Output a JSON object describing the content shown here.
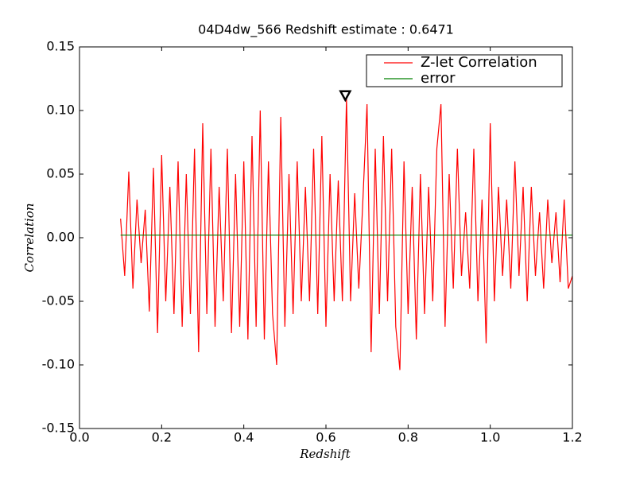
{
  "chart_data": {
    "type": "line",
    "title": "04D4dw_566 Redshift estimate : 0.6471",
    "xlabel": "Redshift",
    "ylabel": "Correlation",
    "x": [
      0.1,
      0.11,
      0.12,
      0.13,
      0.14,
      0.15,
      0.16,
      0.17,
      0.18,
      0.19,
      0.2,
      0.21,
      0.22,
      0.23,
      0.24,
      0.25,
      0.26,
      0.27,
      0.28,
      0.29,
      0.3,
      0.31,
      0.32,
      0.33,
      0.34,
      0.35,
      0.36,
      0.37,
      0.38,
      0.39,
      0.4,
      0.41,
      0.42,
      0.43,
      0.44,
      0.45,
      0.46,
      0.47,
      0.48,
      0.49,
      0.5,
      0.51,
      0.52,
      0.53,
      0.54,
      0.55,
      0.56,
      0.57,
      0.58,
      0.59,
      0.6,
      0.61,
      0.62,
      0.63,
      0.64,
      0.65,
      0.66,
      0.67,
      0.68,
      0.69,
      0.7,
      0.71,
      0.72,
      0.73,
      0.74,
      0.75,
      0.76,
      0.77,
      0.78,
      0.79,
      0.8,
      0.81,
      0.82,
      0.83,
      0.84,
      0.85,
      0.86,
      0.87,
      0.88,
      0.89,
      0.9,
      0.91,
      0.92,
      0.93,
      0.94,
      0.95,
      0.96,
      0.97,
      0.98,
      0.99,
      1.0,
      1.01,
      1.02,
      1.03,
      1.04,
      1.05,
      1.06,
      1.07,
      1.08,
      1.09,
      1.1,
      1.11,
      1.12,
      1.13,
      1.14,
      1.15,
      1.16,
      1.17,
      1.18,
      1.19,
      1.2
    ],
    "series": [
      {
        "name": "Z-let Correlation",
        "color": "#ff0000",
        "values": [
          0.015,
          -0.03,
          0.052,
          -0.04,
          0.03,
          -0.02,
          0.022,
          -0.058,
          0.055,
          -0.075,
          0.065,
          -0.05,
          0.04,
          -0.06,
          0.06,
          -0.07,
          0.05,
          -0.06,
          0.07,
          -0.09,
          0.09,
          -0.06,
          0.07,
          -0.07,
          0.04,
          -0.05,
          0.07,
          -0.075,
          0.05,
          -0.07,
          0.06,
          -0.08,
          0.08,
          -0.07,
          0.1,
          -0.08,
          0.06,
          -0.06,
          -0.1,
          0.095,
          -0.07,
          0.05,
          -0.06,
          0.06,
          -0.05,
          0.04,
          -0.05,
          0.07,
          -0.06,
          0.08,
          -0.07,
          0.05,
          -0.05,
          0.045,
          -0.05,
          0.11,
          -0.05,
          0.035,
          -0.04,
          0.03,
          0.105,
          -0.09,
          0.07,
          -0.06,
          0.08,
          -0.05,
          0.07,
          -0.07,
          -0.104,
          0.06,
          -0.06,
          0.04,
          -0.08,
          0.05,
          -0.06,
          0.04,
          -0.05,
          0.07,
          0.105,
          -0.07,
          0.05,
          -0.04,
          0.07,
          -0.03,
          0.02,
          -0.04,
          0.07,
          -0.05,
          0.03,
          -0.083,
          0.09,
          -0.05,
          0.04,
          -0.03,
          0.03,
          -0.04,
          0.06,
          -0.03,
          0.04,
          -0.05,
          0.04,
          -0.03,
          0.02,
          -0.04,
          0.03,
          -0.02,
          0.02,
          -0.035,
          0.03,
          -0.04,
          -0.03
        ]
      },
      {
        "name": "error",
        "color": "#008000",
        "x": [
          0.1,
          1.2
        ],
        "values": [
          0.002,
          0.002
        ]
      }
    ],
    "marker": {
      "x": 0.6471,
      "y": 0.112
    },
    "xlim": [
      0.0,
      1.2
    ],
    "xticks": [
      {
        "value": 0.0,
        "label": "0.0"
      },
      0.2,
      0.4,
      0.6,
      0.8,
      {
        "value": 1.0,
        "label": "1.0"
      },
      1.2
    ],
    "ylim": [
      -0.15,
      0.15
    ],
    "yticks": [
      {
        "value": -0.15,
        "label": "-0.15"
      },
      {
        "value": -0.1,
        "label": "-0.10"
      },
      {
        "value": -0.05,
        "label": "-0.05"
      },
      {
        "value": 0,
        "label": "0.00"
      },
      {
        "value": 0.05,
        "label": "0.05"
      },
      {
        "value": 0.1,
        "label": "0.10"
      },
      {
        "value": 0.15,
        "label": "0.15"
      }
    ],
    "legend": "upper right",
    "grid": false
  }
}
